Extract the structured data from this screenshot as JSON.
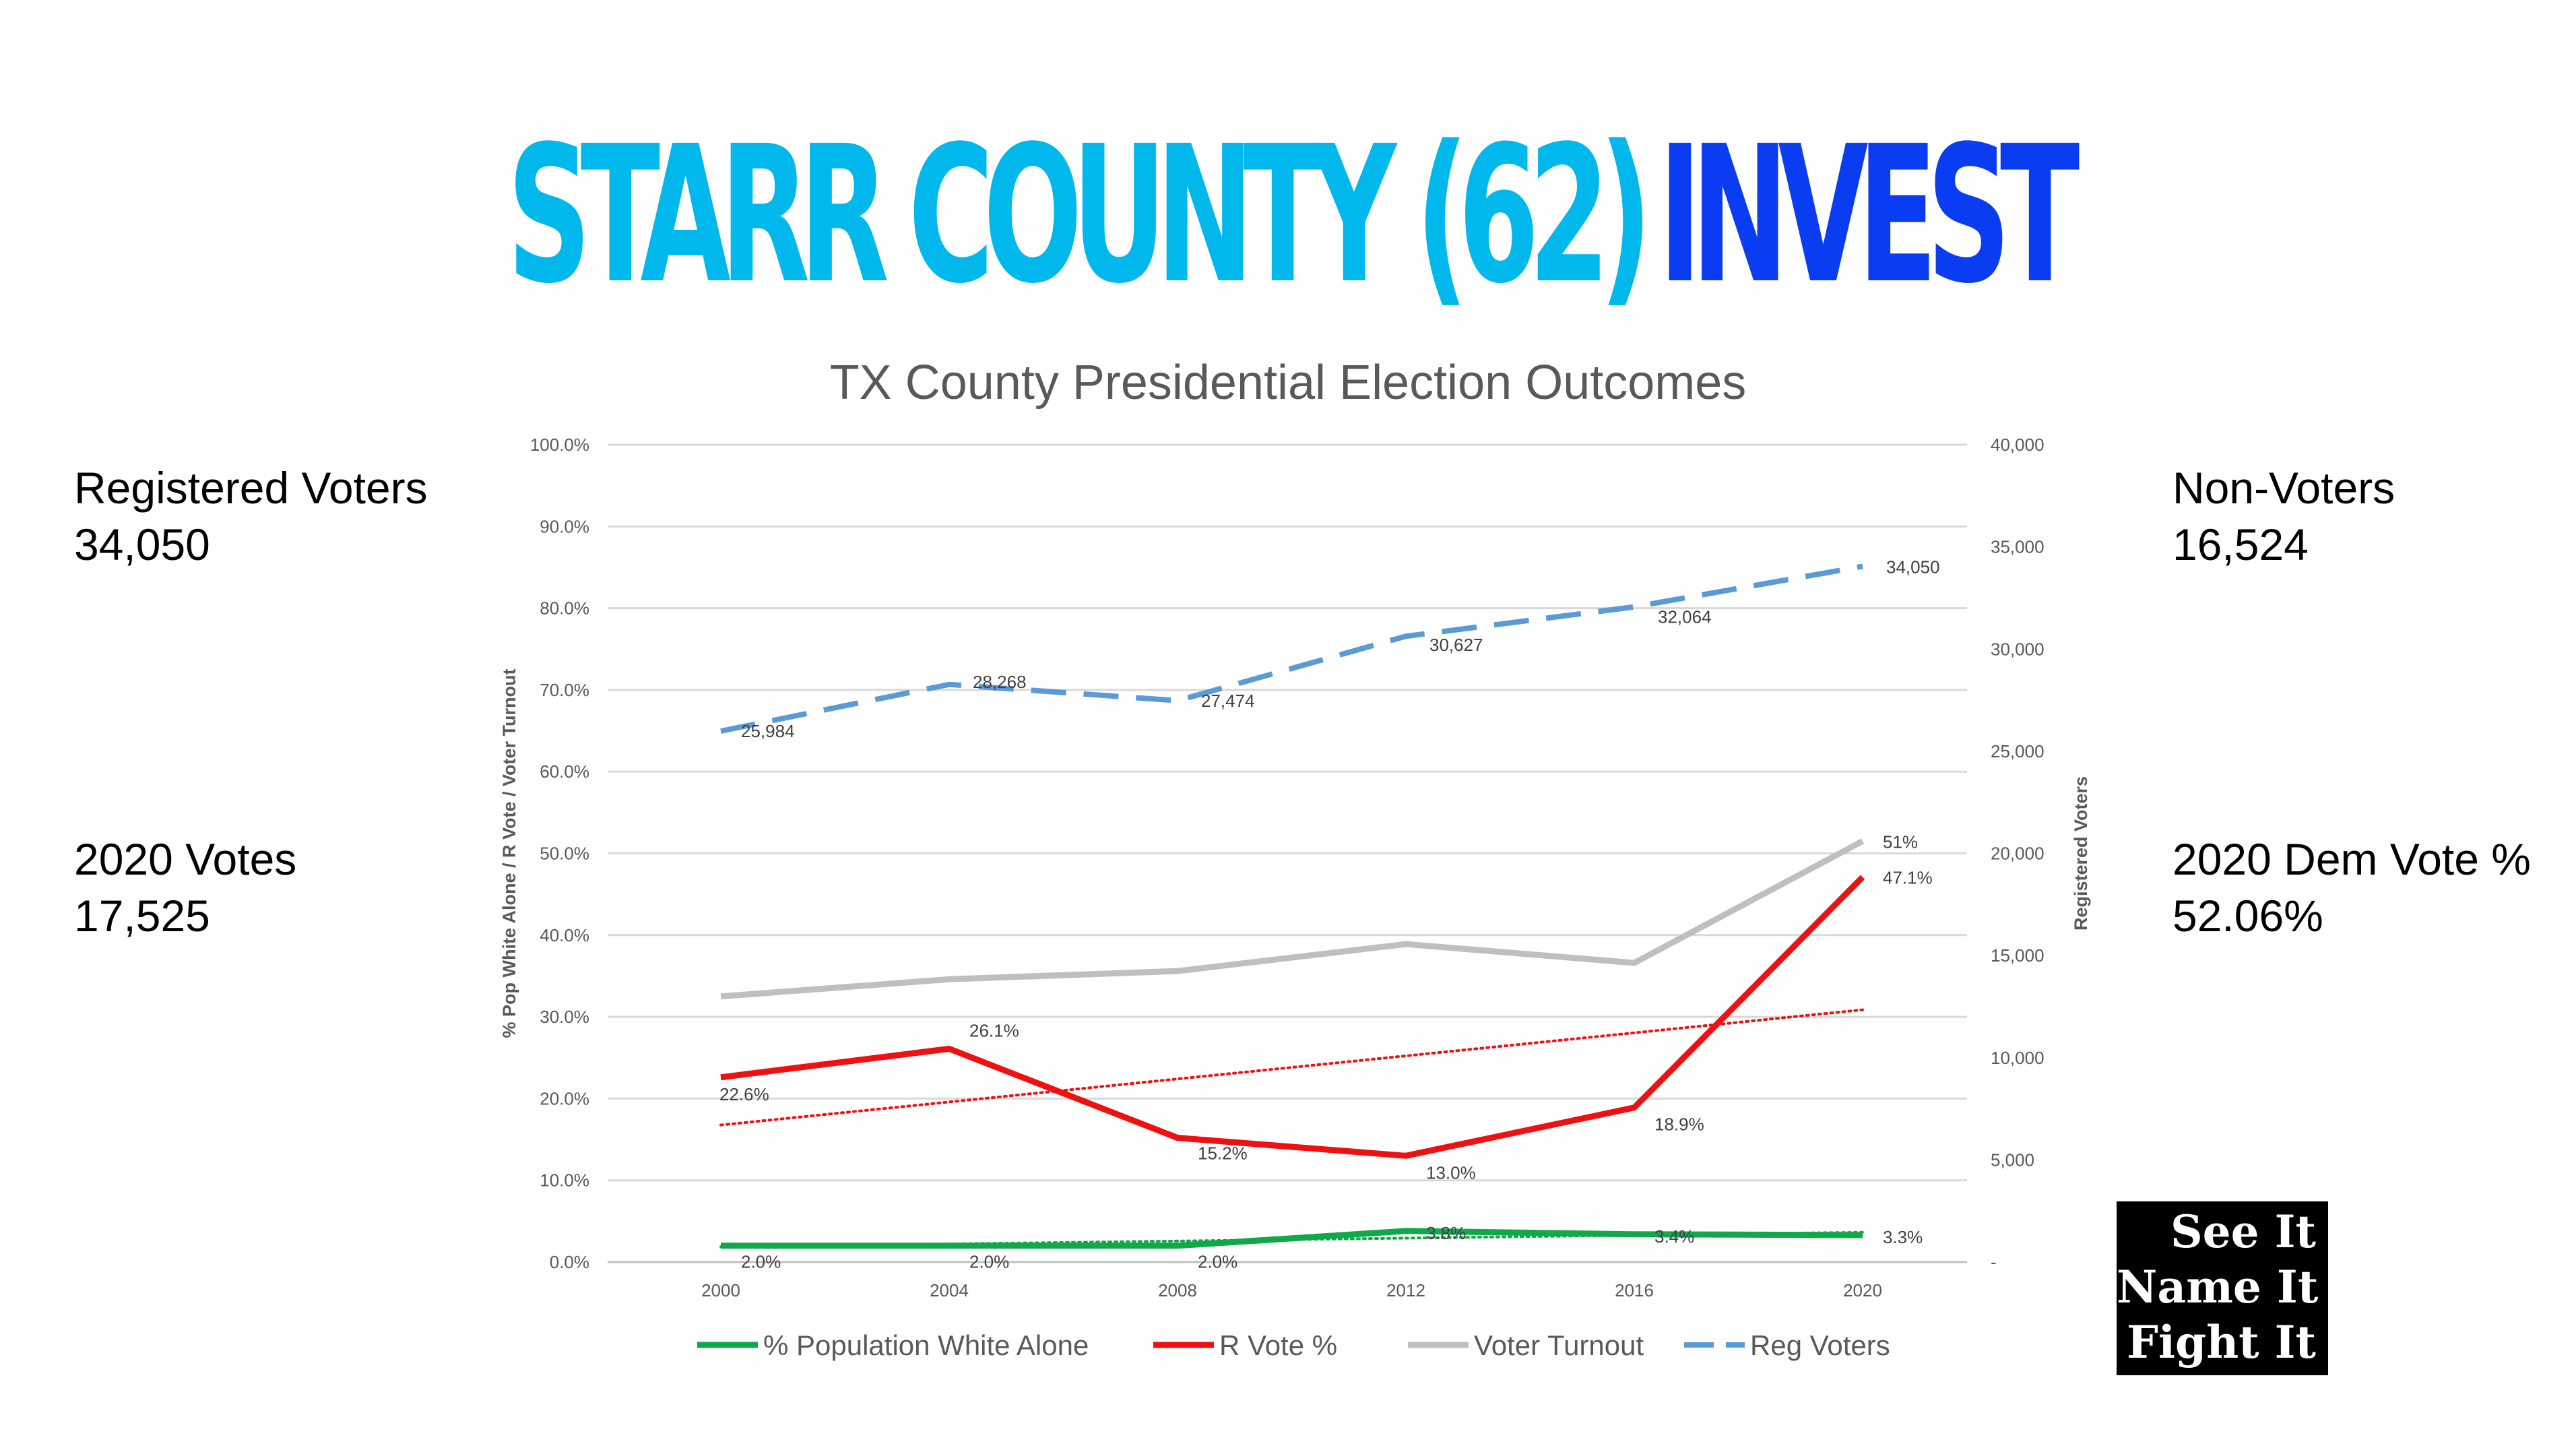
{
  "header": {
    "county_title": "STARR COUNTY (62)",
    "status_word": "INVEST"
  },
  "stats": {
    "registered_voters": {
      "label": "Registered Voters",
      "value": "34,050"
    },
    "non_voters": {
      "label": "Non-Voters",
      "value": "16,524"
    },
    "votes_2020": {
      "label": "2020 Votes",
      "value": "17,525"
    },
    "dem_vote_2020": {
      "label": "2020 Dem Vote %",
      "value": "52.06%"
    }
  },
  "badge": {
    "lines": [
      "See It",
      "Name It",
      "Fight It"
    ]
  },
  "colors": {
    "title_cyan": "#00b8ec",
    "title_blue": "#0a3cf2",
    "white_alone": "#11a84a",
    "r_vote": "#ee1111",
    "turnout": "#bfbfbf",
    "reg_voters": "#5b9bd5"
  },
  "chart_data": {
    "type": "line",
    "title": "TX County Presidential Election Outcomes",
    "x": [
      2000,
      2004,
      2008,
      2012,
      2016,
      2020
    ],
    "ylabel_left": "% Pop White Alone / R Vote / Voter Turnout",
    "ylabel_right": "Registered Voters",
    "ylim_left": [
      0,
      100
    ],
    "ylim_right": [
      0,
      40000
    ],
    "left_ticks": [
      "0.0%",
      "10.0%",
      "20.0%",
      "30.0%",
      "40.0%",
      "50.0%",
      "60.0%",
      "70.0%",
      "80.0%",
      "90.0%",
      "100.0%"
    ],
    "right_ticks": [
      "-",
      "5,000",
      "10,000",
      "15,000",
      "20,000",
      "25,000",
      "30,000",
      "35,000",
      "40,000"
    ],
    "grid": true,
    "legend_position": "bottom",
    "series": [
      {
        "name": "% Population White Alone",
        "axis": "left",
        "values": [
          2.0,
          2.0,
          2.0,
          3.8,
          3.4,
          3.3
        ],
        "labels": [
          "2.0%",
          "2.0%",
          "2.0%",
          "3.8%",
          "3.4%",
          "3.3%"
        ],
        "color": "#11a84a",
        "style": "solid",
        "trendline": true
      },
      {
        "name": "R Vote %",
        "axis": "left",
        "values": [
          22.6,
          26.1,
          15.2,
          13.0,
          18.9,
          47.1
        ],
        "labels": [
          "22.6%",
          "26.1%",
          "15.2%",
          "13.0%",
          "18.9%",
          "47.1%"
        ],
        "color": "#ee1111",
        "style": "solid",
        "trendline": true
      },
      {
        "name": "Voter Turnout",
        "axis": "left",
        "values": [
          32.5,
          34.6,
          35.6,
          38.9,
          36.6,
          51.5
        ],
        "labels": [
          "",
          "",
          "",
          "",
          "",
          "51%"
        ],
        "color": "#bfbfbf",
        "style": "solid",
        "trendline": false
      },
      {
        "name": "Reg Voters",
        "axis": "right",
        "values": [
          25984,
          28268,
          27474,
          30627,
          32064,
          34050
        ],
        "labels": [
          "25,984",
          "28,268",
          "27,474",
          "30,627",
          "32,064",
          "34,050"
        ],
        "color": "#5b9bd5",
        "style": "dashed",
        "trendline": false
      }
    ]
  }
}
